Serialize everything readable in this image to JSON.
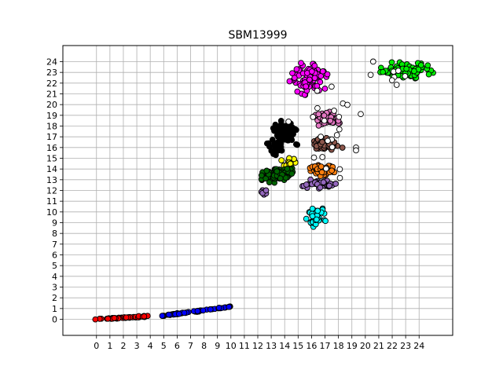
{
  "chart_data": {
    "type": "scatter",
    "title": "SBM13999",
    "xlabel": "",
    "ylabel": "",
    "xlim": [
      -2.5,
      26.5
    ],
    "ylim": [
      -1.5,
      25.5
    ],
    "grid": true,
    "xticks": [
      "0",
      "1",
      "2",
      "3",
      "4",
      "5",
      "6",
      "7",
      "8",
      "9",
      "10",
      "11",
      "12",
      "13",
      "14",
      "15",
      "16",
      "17",
      "18",
      "19",
      "20",
      "21",
      "22",
      "23",
      "24"
    ],
    "yticks": [
      "0",
      "1",
      "2",
      "3",
      "4",
      "5",
      "6",
      "7",
      "8",
      "9",
      "10",
      "11",
      "12",
      "13",
      "14",
      "15",
      "16",
      "17",
      "18",
      "19",
      "20",
      "21",
      "22",
      "23",
      "24"
    ],
    "series": [
      {
        "color": "#ff0000",
        "clusters": [
          {
            "cx": 2.0,
            "cy": 0.15,
            "spread": 2.1,
            "slope": 0.07,
            "kind": "line",
            "n": 45
          }
        ]
      },
      {
        "color": "#0000ff",
        "clusters": [
          {
            "cx": 7.4,
            "cy": 0.75,
            "spread": 2.6,
            "slope": 0.17,
            "kind": "line",
            "n": 55
          }
        ]
      },
      {
        "color": "#ff00ff",
        "clusters": [
          {
            "cx": 15.8,
            "cy": 22.4,
            "rx": 1.6,
            "ry": 1.9,
            "n": 90
          }
        ]
      },
      {
        "color": "#00ee00",
        "clusters": [
          {
            "cx": 23.0,
            "cy": 23.2,
            "rx": 2.6,
            "ry": 1.0,
            "n": 90
          }
        ]
      },
      {
        "color": "#000000",
        "clusters": [
          {
            "cx": 14.0,
            "cy": 17.3,
            "rx": 1.1,
            "ry": 1.6,
            "n": 90
          },
          {
            "cx": 13.4,
            "cy": 16.0,
            "rx": 0.9,
            "ry": 0.9,
            "n": 25
          }
        ]
      },
      {
        "color": "#e377c2",
        "clusters": [
          {
            "cx": 17.2,
            "cy": 18.8,
            "rx": 1.4,
            "ry": 1.0,
            "n": 55
          }
        ]
      },
      {
        "color": "#8c564b",
        "clusters": [
          {
            "cx": 17.1,
            "cy": 16.3,
            "rx": 1.5,
            "ry": 0.9,
            "n": 60
          }
        ]
      },
      {
        "color": "#ff7f0e",
        "clusters": [
          {
            "cx": 16.8,
            "cy": 13.9,
            "rx": 1.4,
            "ry": 0.7,
            "n": 50
          }
        ]
      },
      {
        "color": "#ffff00",
        "clusters": [
          {
            "cx": 14.4,
            "cy": 14.6,
            "rx": 0.8,
            "ry": 0.6,
            "n": 20
          }
        ]
      },
      {
        "color": "#006400",
        "clusters": [
          {
            "cx": 13.3,
            "cy": 13.4,
            "rx": 1.7,
            "ry": 0.9,
            "n": 75
          }
        ]
      },
      {
        "color": "#9467bd",
        "clusters": [
          {
            "cx": 16.5,
            "cy": 12.6,
            "rx": 1.6,
            "ry": 0.5,
            "n": 40
          },
          {
            "cx": 12.4,
            "cy": 11.8,
            "rx": 0.5,
            "ry": 0.4,
            "n": 8
          }
        ]
      },
      {
        "color": "#00ffff",
        "clusters": [
          {
            "cx": 16.3,
            "cy": 9.4,
            "rx": 1.1,
            "ry": 1.2,
            "n": 50
          }
        ]
      },
      {
        "color": "#ffffff",
        "clusters": [
          {
            "cx": 17.5,
            "cy": 18.0,
            "rx": 3.5,
            "ry": 6.0,
            "n": 25
          },
          {
            "cx": 22.0,
            "cy": 23.0,
            "rx": 3.0,
            "ry": 2.0,
            "n": 8
          }
        ]
      }
    ]
  }
}
